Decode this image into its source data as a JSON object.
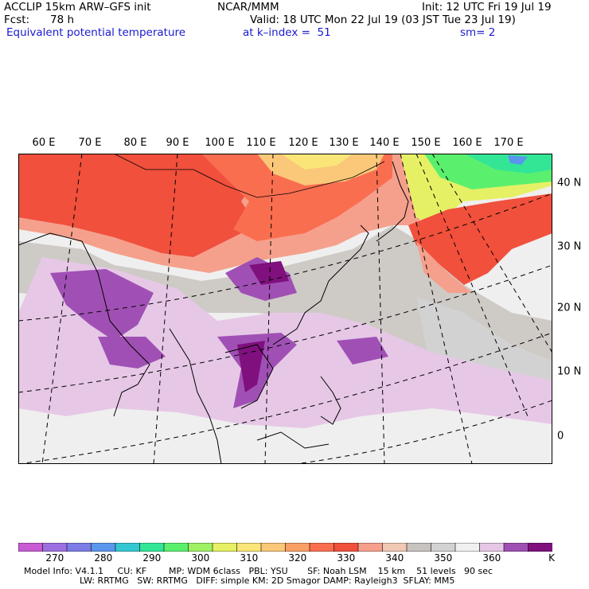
{
  "header": {
    "model_title": "ACCLIP 15km ARW–GFS init",
    "center": "NCAR/MMM",
    "init_time": "Init: 12 UTC Fri 19 Jul 19",
    "forecast_label": "Fcst:",
    "forecast_hours": "78 h",
    "valid_time": "Valid: 18 UTC Mon 22 Jul 19 (03 JST Tue 23 Jul 19)",
    "field_name": "Equivalent potential temperature",
    "level": "at k–index =  51",
    "smoothing": "sm= 2"
  },
  "map": {
    "longitude_labels": [
      "60 E",
      "70 E",
      "80 E",
      "90 E",
      "100 E",
      "110 E",
      "120 E",
      "130 E",
      "140 E",
      "150 E",
      "160 E",
      "170 E"
    ],
    "latitude_labels": [
      "40 N",
      "30 N",
      "20 N",
      "10 N",
      "0"
    ]
  },
  "colorbar": {
    "unit": "K",
    "labels": [
      "270",
      "280",
      "290",
      "300",
      "310",
      "320",
      "330",
      "340",
      "350",
      "360"
    ],
    "colors": [
      "#c85ad2",
      "#9c70e0",
      "#7c7ce6",
      "#5a96ec",
      "#32c8d2",
      "#32e696",
      "#5af06e",
      "#a0f064",
      "#e6f064",
      "#fae678",
      "#fac878",
      "#faa064",
      "#fa6e50",
      "#f0503c",
      "#f5a08c",
      "#f0c8b4",
      "#c8c3be",
      "#d2d2d2",
      "#f0f0f0",
      "#e6c8e6",
      "#a050b4",
      "#80107e"
    ]
  },
  "footer": {
    "line1": "Model Info: V4.1.1     CU: KF        MP: WDM 6class   PBL: YSU       SF: Noah LSM    15 km    51 levels   90 sec",
    "line2": "LW: RRTMG   SW: RRTMG   DIFF: simple KM: 2D Smagor DAMP: Rayleigh3  SFLAY: MM5"
  }
}
